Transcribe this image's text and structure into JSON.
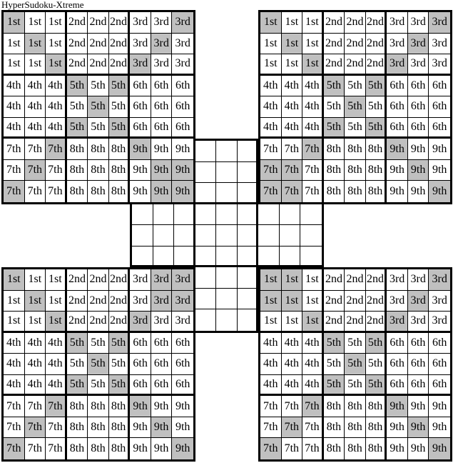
{
  "title": "HyperSudoku-Xtreme",
  "colors": {
    "shaded": "#c0c0c0",
    "grid_line": "#000000",
    "cell_bg": "#ffffff"
  },
  "corner_cell_labels": [
    [
      "1st",
      "1st",
      "1st",
      "2nd",
      "2nd",
      "2nd",
      "3rd",
      "3rd",
      "3rd"
    ],
    [
      "1st",
      "1st",
      "1st",
      "2nd",
      "2nd",
      "2nd",
      "3rd",
      "3rd",
      "3rd"
    ],
    [
      "1st",
      "1st",
      "1st",
      "2nd",
      "2nd",
      "2nd",
      "3rd",
      "3rd",
      "3rd"
    ],
    [
      "4th",
      "4th",
      "4th",
      "5th",
      "5th",
      "5th",
      "6th",
      "6th",
      "6th"
    ],
    [
      "4th",
      "4th",
      "4th",
      "5th",
      "5th",
      "5th",
      "6th",
      "6th",
      "6th"
    ],
    [
      "4th",
      "4th",
      "4th",
      "5th",
      "5th",
      "5th",
      "6th",
      "6th",
      "6th"
    ],
    [
      "7th",
      "7th",
      "7th",
      "8th",
      "8th",
      "8th",
      "9th",
      "9th",
      "9th"
    ],
    [
      "7th",
      "7th",
      "7th",
      "8th",
      "8th",
      "8th",
      "9th",
      "9th",
      "9th"
    ],
    [
      "7th",
      "7th",
      "7th",
      "8th",
      "8th",
      "8th",
      "9th",
      "9th",
      "9th"
    ]
  ],
  "grids": [
    {
      "id": "top-left",
      "labeled": true,
      "shaded_cells": [
        [
          1,
          1
        ],
        [
          1,
          9
        ],
        [
          2,
          2
        ],
        [
          2,
          8
        ],
        [
          3,
          3
        ],
        [
          3,
          7
        ],
        [
          4,
          4
        ],
        [
          4,
          6
        ],
        [
          5,
          5
        ],
        [
          6,
          4
        ],
        [
          6,
          6
        ],
        [
          7,
          3
        ],
        [
          7,
          7
        ],
        [
          8,
          2
        ],
        [
          8,
          8
        ],
        [
          8,
          9
        ],
        [
          9,
          1
        ],
        [
          9,
          8
        ],
        [
          9,
          9
        ]
      ]
    },
    {
      "id": "top-right",
      "labeled": true,
      "shaded_cells": [
        [
          1,
          1
        ],
        [
          1,
          9
        ],
        [
          2,
          2
        ],
        [
          2,
          8
        ],
        [
          3,
          3
        ],
        [
          3,
          7
        ],
        [
          4,
          4
        ],
        [
          4,
          6
        ],
        [
          5,
          5
        ],
        [
          6,
          4
        ],
        [
          6,
          6
        ],
        [
          7,
          3
        ],
        [
          7,
          7
        ],
        [
          8,
          1
        ],
        [
          8,
          2
        ],
        [
          8,
          8
        ],
        [
          9,
          1
        ],
        [
          9,
          2
        ],
        [
          9,
          9
        ]
      ]
    },
    {
      "id": "center",
      "labeled": false,
      "shaded_cells": []
    },
    {
      "id": "bottom-left",
      "labeled": true,
      "shaded_cells": [
        [
          1,
          1
        ],
        [
          1,
          8
        ],
        [
          1,
          9
        ],
        [
          2,
          2
        ],
        [
          2,
          8
        ],
        [
          2,
          9
        ],
        [
          3,
          3
        ],
        [
          3,
          7
        ],
        [
          4,
          4
        ],
        [
          4,
          6
        ],
        [
          5,
          5
        ],
        [
          6,
          4
        ],
        [
          6,
          6
        ],
        [
          7,
          3
        ],
        [
          7,
          7
        ],
        [
          8,
          2
        ],
        [
          8,
          8
        ],
        [
          9,
          1
        ],
        [
          9,
          9
        ]
      ]
    },
    {
      "id": "bottom-right",
      "labeled": true,
      "shaded_cells": [
        [
          1,
          1
        ],
        [
          1,
          2
        ],
        [
          1,
          9
        ],
        [
          2,
          1
        ],
        [
          2,
          2
        ],
        [
          2,
          8
        ],
        [
          3,
          3
        ],
        [
          3,
          7
        ],
        [
          4,
          4
        ],
        [
          4,
          6
        ],
        [
          5,
          5
        ],
        [
          6,
          4
        ],
        [
          6,
          6
        ],
        [
          7,
          3
        ],
        [
          7,
          7
        ],
        [
          8,
          2
        ],
        [
          8,
          8
        ],
        [
          9,
          1
        ],
        [
          9,
          9
        ]
      ]
    }
  ]
}
